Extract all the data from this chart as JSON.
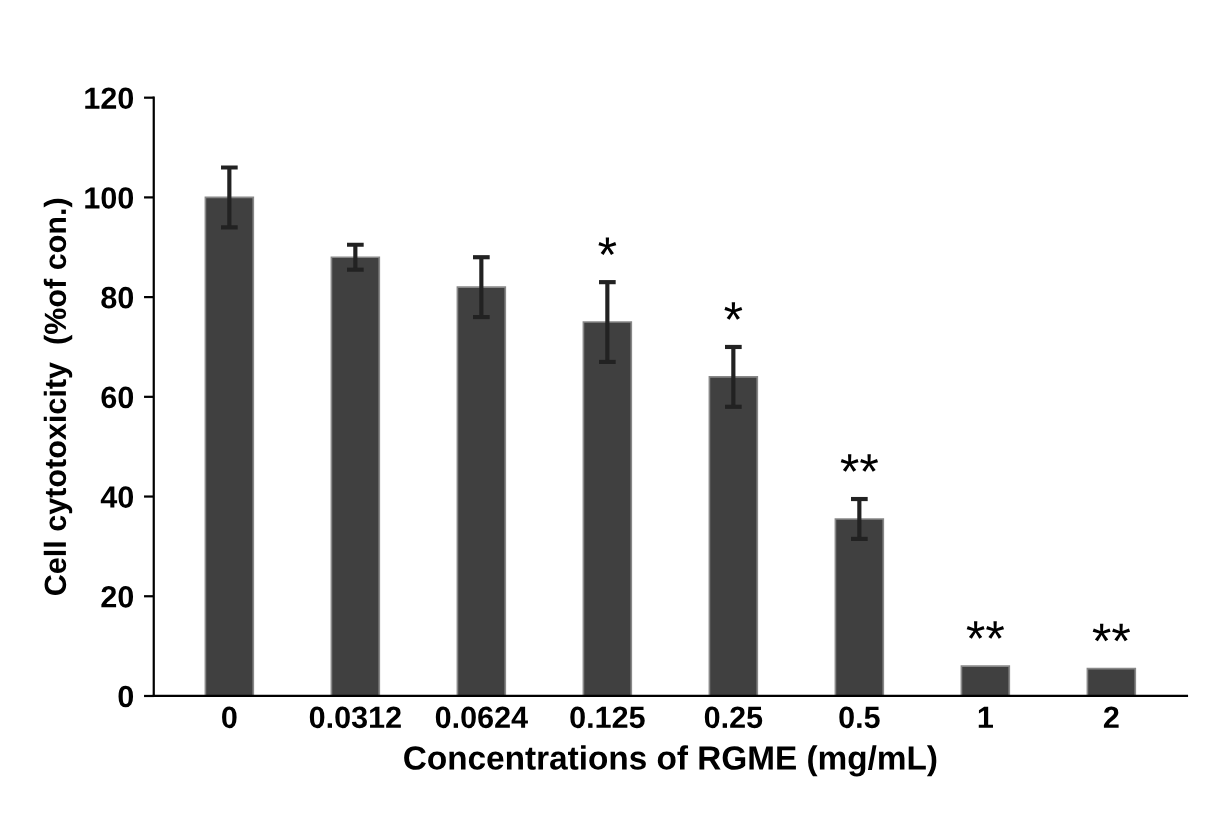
{
  "chart_data": {
    "type": "bar",
    "xlabel": "Concentrations of RGME (mg/mL)",
    "ylabel": "Cell cytotoxicity  (%of con.)",
    "categories": [
      "0",
      "0.0312",
      "0.0624",
      "0.125",
      "0.25",
      "0.5",
      "1",
      "2"
    ],
    "values": [
      100,
      88,
      82,
      75,
      64,
      35.5,
      6,
      5.5
    ],
    "errors": [
      6,
      2.5,
      6,
      8,
      6,
      4,
      null,
      null
    ],
    "color": "#404040",
    "ylim": [
      0,
      120
    ],
    "yticks": [
      0,
      20,
      40,
      60,
      80,
      100,
      120
    ],
    "grid": false,
    "annotations": [
      {
        "text": "*",
        "x": "0.125",
        "y": 75
      },
      {
        "text": "*",
        "x": "0.25",
        "y": 64
      },
      {
        "text": "**",
        "x": "0.5",
        "y": 35.5
      },
      {
        "text": "**",
        "x": "1",
        "y": 6
      },
      {
        "text": "**",
        "x": "2",
        "y": 5.5
      }
    ]
  }
}
